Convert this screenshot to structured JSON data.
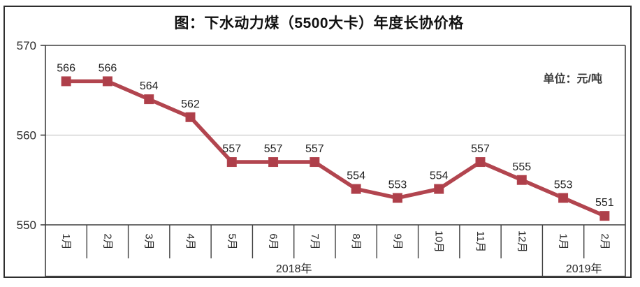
{
  "figure": {
    "title": "图：下水动力煤（5500大卡）年度长协价格",
    "unit_label": "单位：元/吨"
  },
  "chart_data": {
    "type": "line",
    "title": "图：下水动力煤（5500大卡）年度长协价格",
    "unit": "元/吨",
    "categories": [
      "1月",
      "2月",
      "3月",
      "4月",
      "5月",
      "6月",
      "7月",
      "8月",
      "9月",
      "10月",
      "11月",
      "12月",
      "1月",
      "2月"
    ],
    "category_groups": [
      {
        "label": "2018年",
        "span": 12
      },
      {
        "label": "2019年",
        "span": 2
      }
    ],
    "series": [
      {
        "name": "年度长协价格",
        "values": [
          566,
          566,
          564,
          562,
          557,
          557,
          557,
          554,
          553,
          554,
          557,
          555,
          553,
          551
        ]
      }
    ],
    "data_labels": true,
    "ylim": [
      550,
      570
    ],
    "yticks": [
      550,
      560,
      570
    ],
    "grid": "horizontal",
    "legend": "none",
    "marker": "square",
    "colors": {
      "line": "#b2454f",
      "marker": "#ae3f4a",
      "axis": "#3f3f3f",
      "grid": "#c9c9c9",
      "label_text": "#1f1f1f",
      "tick_text": "#2b2b2b"
    }
  }
}
